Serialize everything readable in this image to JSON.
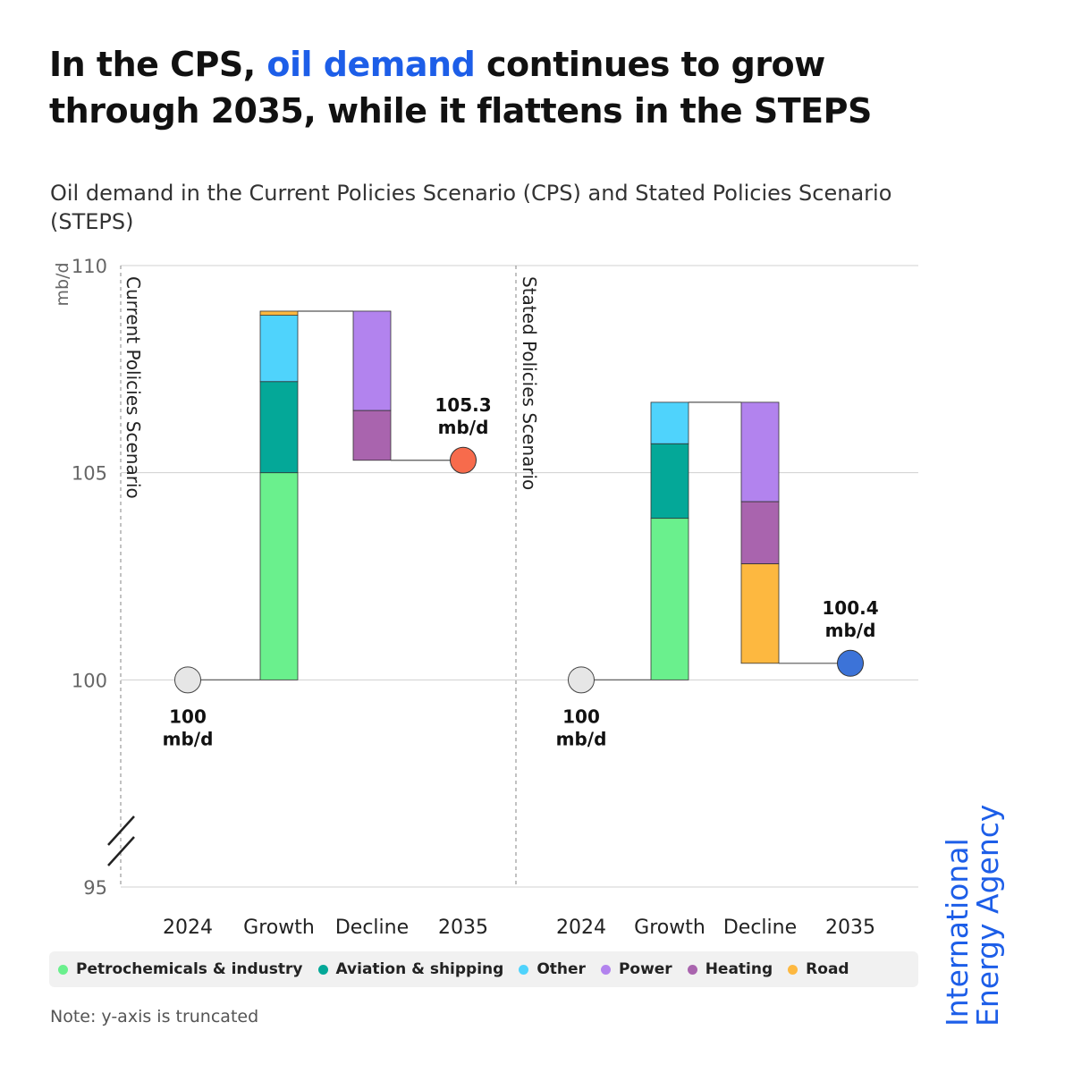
{
  "title": {
    "before": "In the CPS, ",
    "highlight": "oil demand",
    "after": " continues to grow through 2035, while it flattens in the STEPS",
    "highlight_color": "#1d5ee8"
  },
  "subtitle": "Oil demand in the Current Policies Scenario (CPS) and Stated Policies Scenario (STEPS)",
  "note": "Note: y-axis is truncated",
  "logo": {
    "line1": "International",
    "line2": "Energy Agency",
    "color": "#1d5ee8"
  },
  "legend": [
    {
      "name": "Petrochemicals & industry",
      "color": "#6af08d"
    },
    {
      "name": "Aviation & shipping",
      "color": "#04a898"
    },
    {
      "name": "Other",
      "color": "#4fd3fc"
    },
    {
      "name": "Power",
      "color": "#b283ee"
    },
    {
      "name": "Heating",
      "color": "#a964ae"
    },
    {
      "name": "Road",
      "color": "#fdb840"
    }
  ],
  "chart_data": {
    "type": "bar",
    "subtype": "waterfall",
    "ylabel": "mb/d",
    "ylim": [
      95,
      110
    ],
    "yticks": [
      95,
      100,
      105,
      110
    ],
    "axis_break": true,
    "grid": true,
    "categories": [
      "2024",
      "Growth",
      "Decline",
      "2035"
    ],
    "panels": [
      {
        "name": "Current Policies Scenario",
        "start": 100,
        "start_label": [
          "100",
          "mb/d"
        ],
        "start_color": "#e6e6e6",
        "growth": [
          {
            "series": "Petrochemicals & industry",
            "value": 5.0
          },
          {
            "series": "Aviation & shipping",
            "value": 2.2
          },
          {
            "series": "Other",
            "value": 1.6
          },
          {
            "series": "Road",
            "value": 0.1
          }
        ],
        "decline": [
          {
            "series": "Power",
            "value": -2.4
          },
          {
            "series": "Heating",
            "value": -1.2
          }
        ],
        "end": 105.3,
        "end_label": [
          "105.3",
          "mb/d"
        ],
        "end_color": "#f76b4c"
      },
      {
        "name": "Stated Policies Scenario",
        "start": 100,
        "start_label": [
          "100",
          "mb/d"
        ],
        "start_color": "#e6e6e6",
        "growth": [
          {
            "series": "Petrochemicals & industry",
            "value": 3.9
          },
          {
            "series": "Aviation & shipping",
            "value": 1.8
          },
          {
            "series": "Other",
            "value": 1.0
          }
        ],
        "decline": [
          {
            "series": "Power",
            "value": -2.4
          },
          {
            "series": "Heating",
            "value": -1.5
          },
          {
            "series": "Road",
            "value": -2.4
          }
        ],
        "end": 100.4,
        "end_label": [
          "100.4",
          "mb/d"
        ],
        "end_color": "#3c73d8"
      }
    ]
  }
}
